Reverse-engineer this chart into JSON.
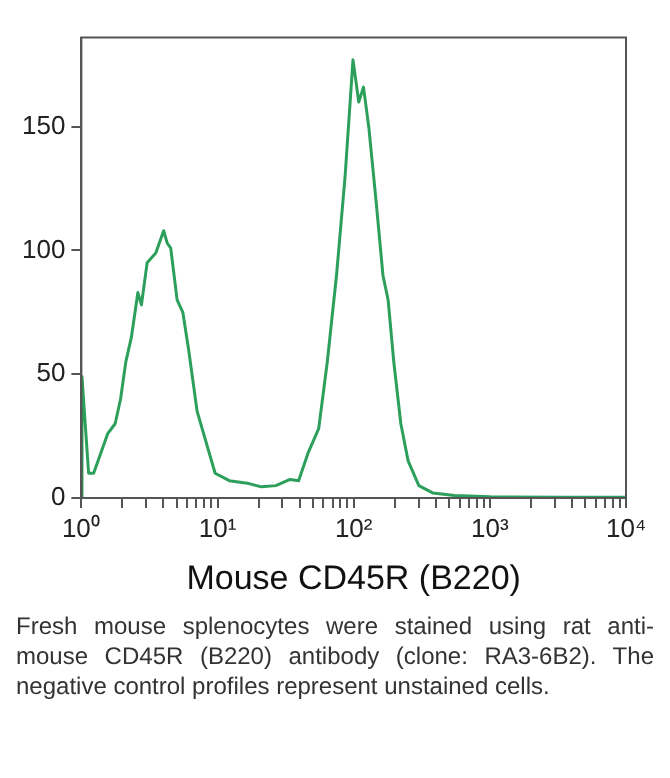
{
  "chart_data": {
    "type": "line",
    "xlabel": "Mouse CD45R (B220)",
    "log": "x",
    "marker": "none",
    "line_style": "solid",
    "grid": false,
    "legend": false,
    "xlim": [
      1,
      10000
    ],
    "ylim": [
      0,
      186
    ],
    "xticks": [
      {
        "value": 1,
        "label": "10⁰"
      },
      {
        "value": 2,
        "label": null
      },
      {
        "value": 3,
        "label": null
      },
      {
        "value": 4,
        "label": null
      },
      {
        "value": 5,
        "label": null
      },
      {
        "value": 6,
        "label": null
      },
      {
        "value": 7,
        "label": null
      },
      {
        "value": 8,
        "label": null
      },
      {
        "value": 9,
        "label": null
      },
      {
        "value": 10,
        "label": "10¹"
      },
      {
        "value": 20,
        "label": null
      },
      {
        "value": 30,
        "label": null
      },
      {
        "value": 40,
        "label": null
      },
      {
        "value": 50,
        "label": null
      },
      {
        "value": 60,
        "label": null
      },
      {
        "value": 70,
        "label": null
      },
      {
        "value": 80,
        "label": null
      },
      {
        "value": 90,
        "label": null
      },
      {
        "value": 100,
        "label": "10²"
      },
      {
        "value": 200,
        "label": null
      },
      {
        "value": 300,
        "label": null
      },
      {
        "value": 400,
        "label": null
      },
      {
        "value": 500,
        "label": null
      },
      {
        "value": 600,
        "label": null
      },
      {
        "value": 700,
        "label": null
      },
      {
        "value": 800,
        "label": null
      },
      {
        "value": 900,
        "label": null
      },
      {
        "value": 1000,
        "label": "10³"
      },
      {
        "value": 2000,
        "label": null
      },
      {
        "value": 3000,
        "label": null
      },
      {
        "value": 4000,
        "label": null
      },
      {
        "value": 5000,
        "label": null
      },
      {
        "value": 6000,
        "label": null
      },
      {
        "value": 7000,
        "label": null
      },
      {
        "value": 8000,
        "label": null
      },
      {
        "value": 9000,
        "label": null
      },
      {
        "value": 10000,
        "label": "10⁴"
      }
    ],
    "yticks": [
      0,
      50,
      100,
      150
    ],
    "series": [
      {
        "color": "#2ca05a",
        "x": [
          1,
          1.01,
          1.13,
          1.23,
          1.56,
          1.77,
          1.94,
          2.12,
          2.33,
          2.6,
          2.76,
          3.04,
          3.52,
          4.02,
          4.27,
          4.53,
          5.05,
          5.56,
          6.13,
          7.08,
          8,
          9.6,
          12.2,
          16.5,
          21,
          26.8,
          34.1,
          39.4,
          46.1,
          55.3,
          64,
          74.8,
          86.5,
          98.8,
          109,
          118,
          129,
          146,
          164,
          179,
          197,
          222,
          251,
          301,
          383,
          550,
          1006,
          3390,
          10000
        ],
        "values": [
          0,
          49,
          10,
          10,
          26,
          30,
          40,
          55,
          65,
          83,
          78,
          95,
          99,
          108,
          103,
          101,
          80,
          75,
          60,
          35,
          25,
          10,
          7,
          6,
          4.5,
          5,
          7.5,
          7,
          18,
          28,
          55,
          90,
          130,
          177,
          160,
          166,
          150,
          120,
          90,
          80,
          55,
          30,
          15,
          5,
          2,
          1,
          0.5,
          0.3,
          0.3
        ]
      }
    ],
    "annotations": [
      "Fresh mouse splenocytes were stained using rat anti-mouse CD45R (B220) antibody (clone: RA3-6B2). The negative control profiles represent unstained cells."
    ]
  }
}
